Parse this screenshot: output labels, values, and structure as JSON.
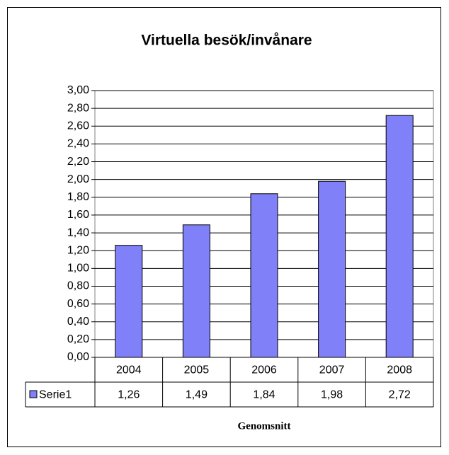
{
  "chart_data": {
    "type": "bar",
    "title": "Virtuella besök/invånare",
    "categories": [
      "2004",
      "2005",
      "2006",
      "2007",
      "2008"
    ],
    "series": [
      {
        "name": "Serie1",
        "color": "#8080f8",
        "values": [
          1.26,
          1.49,
          1.84,
          1.98,
          2.72
        ],
        "value_labels": [
          "1,26",
          "1,49",
          "1,84",
          "1,98",
          "2,72"
        ]
      }
    ],
    "x_label": "Genomsnitt",
    "ylim": [
      0,
      3
    ],
    "yticks": [
      {
        "value": 0,
        "label": "0,00"
      },
      {
        "value": 0.2,
        "label": "0,20"
      },
      {
        "value": 0.4,
        "label": "0,40"
      },
      {
        "value": 0.6,
        "label": "0,60"
      },
      {
        "value": 0.8,
        "label": "0,80"
      },
      {
        "value": 1,
        "label": "1,00"
      },
      {
        "value": 1.2,
        "label": "1,20"
      },
      {
        "value": 1.4,
        "label": "1,40"
      },
      {
        "value": 1.6,
        "label": "1,60"
      },
      {
        "value": 1.8,
        "label": "1,80"
      },
      {
        "value": 2,
        "label": "2,00"
      },
      {
        "value": 2.2,
        "label": "2,20"
      },
      {
        "value": 2.4,
        "label": "2,40"
      },
      {
        "value": 2.6,
        "label": "2,60"
      },
      {
        "value": 2.8,
        "label": "2,80"
      },
      {
        "value": 3,
        "label": "3,00"
      }
    ],
    "grid": true
  }
}
